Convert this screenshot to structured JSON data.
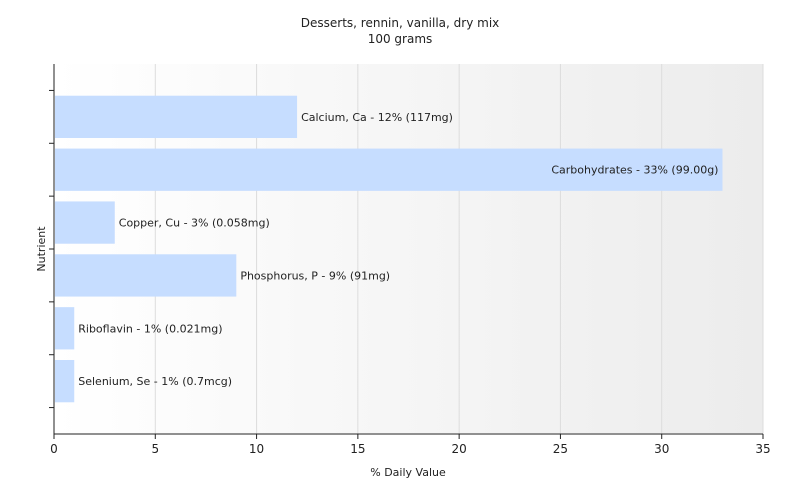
{
  "chart_data": {
    "type": "bar",
    "orientation": "horizontal",
    "title": "Desserts, rennin, vanilla, dry mix",
    "subtitle": "100 grams",
    "xlabel": "% Daily Value",
    "ylabel": "Nutrient",
    "xlim": [
      0,
      35
    ],
    "xticks": [
      0,
      5,
      10,
      15,
      20,
      25,
      30,
      35
    ],
    "grid": true,
    "bar_color": "#c6ddff",
    "categories": [
      "Calcium, Ca",
      "Carbohydrates",
      "Copper, Cu",
      "Phosphorus, P",
      "Riboflavin",
      "Selenium, Se"
    ],
    "values": [
      12,
      33,
      3,
      9,
      1,
      1
    ],
    "labels": [
      "Calcium, Ca - 12% (117mg)",
      "Carbohydrates - 33% (99.00g)",
      "Copper, Cu - 3% (0.058mg)",
      "Phosphorus, P - 9% (91mg)",
      "Riboflavin - 1% (0.021mg)",
      "Selenium, Se - 1% (0.7mcg)"
    ]
  }
}
